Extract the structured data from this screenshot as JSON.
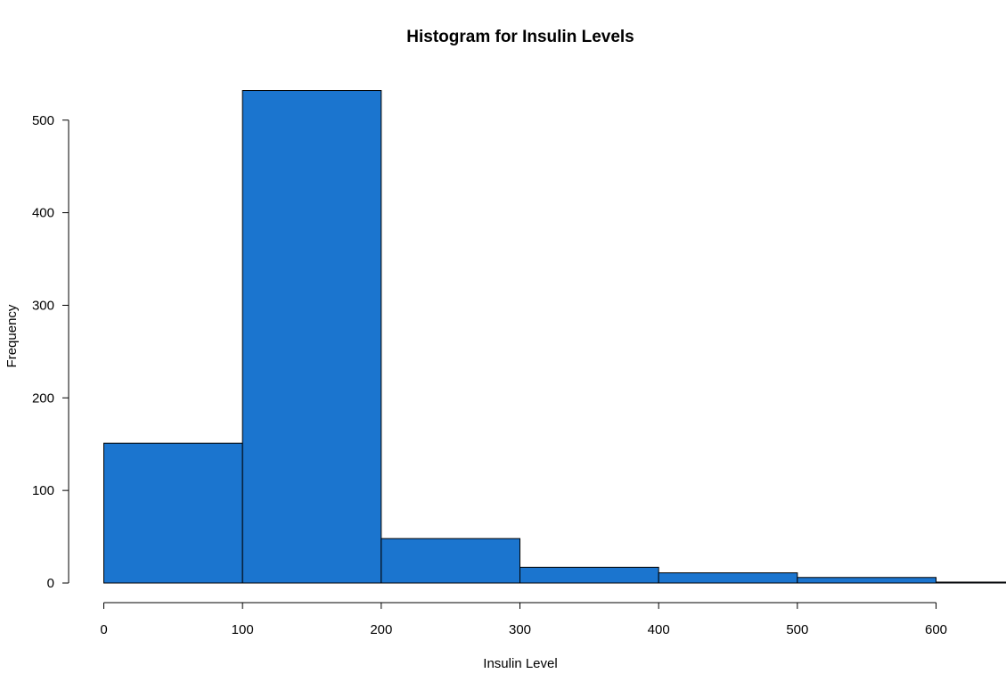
{
  "chart_data": {
    "type": "bar",
    "subtype": "histogram",
    "title": "Histogram for Insulin Levels",
    "xlabel": "Insulin Level",
    "ylabel": "Frequency",
    "bins": [
      {
        "start": 0,
        "end": 100,
        "count": 151
      },
      {
        "start": 100,
        "end": 200,
        "count": 532
      },
      {
        "start": 200,
        "end": 300,
        "count": 48
      },
      {
        "start": 300,
        "end": 400,
        "count": 17
      },
      {
        "start": 400,
        "end": 500,
        "count": 11
      },
      {
        "start": 500,
        "end": 600,
        "count": 6
      },
      {
        "start": 600,
        "end": 700,
        "count": 1
      }
    ],
    "xlim": [
      0,
      600
    ],
    "ylim": [
      0,
      500
    ],
    "x_ticks": [
      0,
      100,
      200,
      300,
      400,
      500,
      600
    ],
    "y_ticks": [
      0,
      100,
      200,
      300,
      400,
      500
    ],
    "bar_color": "#1b75cf",
    "grid": false,
    "legend": "none"
  }
}
